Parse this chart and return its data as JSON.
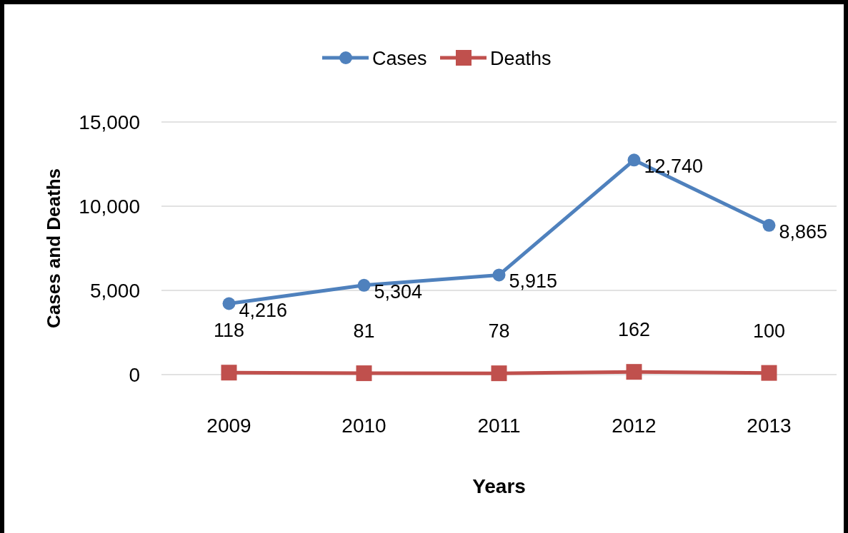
{
  "chart_data": {
    "type": "line",
    "xlabel": "Years",
    "ylabel": "Cases and Deaths",
    "categories": [
      "2009",
      "2010",
      "2011",
      "2012",
      "2013"
    ],
    "series": [
      {
        "name": "Cases",
        "color": "#4f81bd",
        "marker": "circle",
        "values": [
          4216,
          5304,
          5915,
          12740,
          8865
        ],
        "value_labels": [
          "4,216",
          "5,304",
          "5,915",
          "12,740",
          "8,865"
        ]
      },
      {
        "name": "Deaths",
        "color": "#c0504d",
        "marker": "square",
        "values": [
          118,
          81,
          78,
          162,
          100
        ],
        "value_labels": [
          "118",
          "81",
          "78",
          "162",
          "100"
        ]
      }
    ],
    "ylim": [
      0,
      15000
    ],
    "yticks": [
      {
        "value": 0,
        "label": "0"
      },
      {
        "value": 5000,
        "label": "5,000"
      },
      {
        "value": 10000,
        "label": "10,000"
      },
      {
        "value": 15000,
        "label": "15,000"
      }
    ],
    "grid": "y",
    "legend": "top",
    "line_style": "solid"
  }
}
